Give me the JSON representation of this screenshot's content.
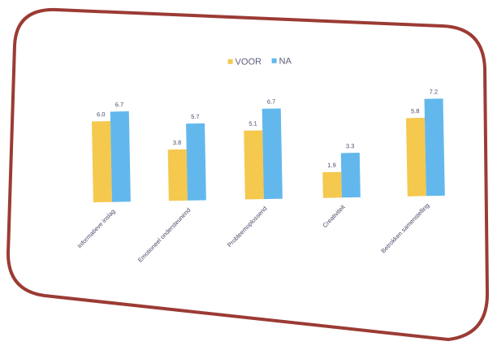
{
  "chart_data": {
    "type": "bar",
    "title": "",
    "xlabel": "",
    "ylabel": "",
    "ylim": [
      0,
      8
    ],
    "grid": false,
    "legend_position": "top-center",
    "categories": [
      "Informatieve inslag",
      "Emotioneel ondersteunend",
      "Probleemoplossend",
      "Creativiteit",
      "Betrokken samenstelling"
    ],
    "series": [
      {
        "name": "VOOR",
        "color": "#f5c84e",
        "values": [
          6.0,
          3.8,
          5.1,
          1.9,
          5.8
        ],
        "labels": [
          "6.0",
          "3.8",
          "5.1",
          "1.9",
          "5.8"
        ]
      },
      {
        "name": "NA",
        "color": "#62b8ec",
        "values": [
          6.7,
          5.7,
          6.7,
          3.3,
          7.2
        ],
        "labels": [
          "6.7",
          "5.7",
          "6.7",
          "3.3",
          "7.2"
        ]
      }
    ]
  },
  "frame_color": "#9b3b34"
}
